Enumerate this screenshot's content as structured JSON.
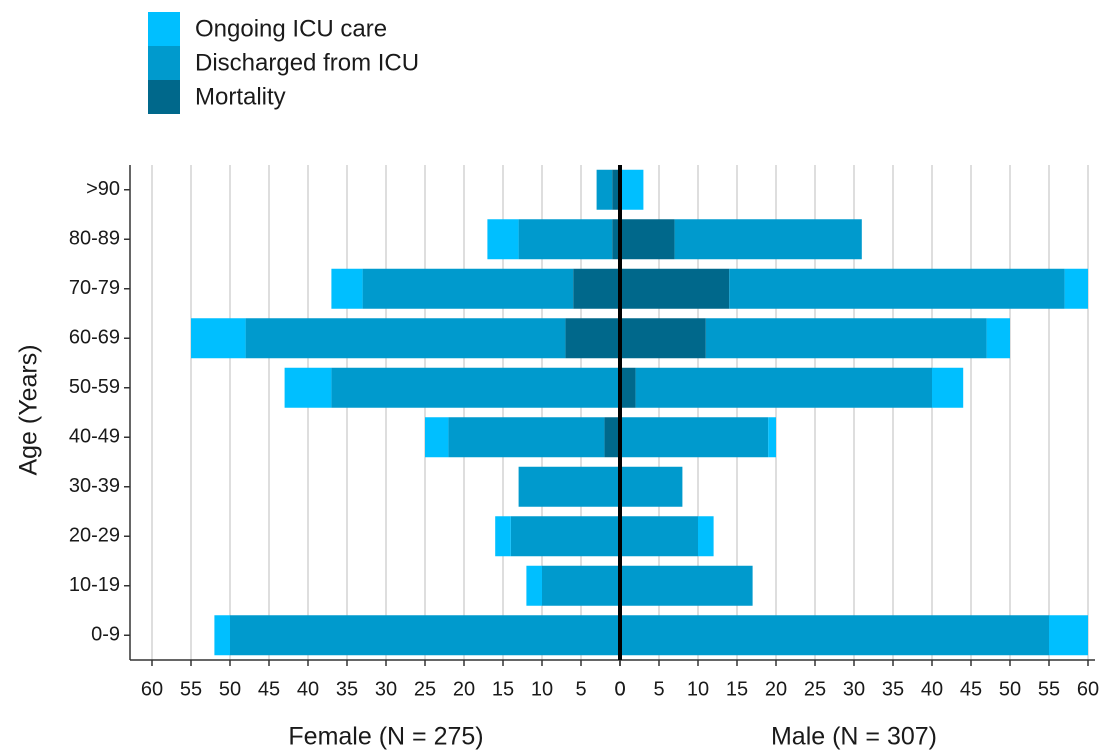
{
  "chart_data": {
    "type": "pyramid",
    "ylabel": "Age (Years)",
    "categories": [
      "0-9",
      "10-19",
      "20-29",
      "30-39",
      "40-49",
      "50-59",
      "60-69",
      "70-79",
      "80-89",
      ">90"
    ],
    "series": [
      {
        "name": "Ongoing ICU care",
        "color": "#00bfff"
      },
      {
        "name": "Discharged from ICU",
        "color": "#009acd"
      },
      {
        "name": "Mortality",
        "color": "#00688b"
      }
    ],
    "sides": [
      {
        "xlabel": "Female (N = 275)",
        "direction": "left",
        "values": [
          [
            2,
            2,
            2,
            0,
            3,
            6,
            7,
            4,
            4,
            0
          ],
          [
            50,
            10,
            14,
            13,
            20,
            37,
            41,
            27,
            12,
            2
          ],
          [
            0,
            0,
            0,
            0,
            2,
            0,
            7,
            6,
            1,
            1
          ]
        ]
      },
      {
        "xlabel": "Male (N = 307)",
        "direction": "right",
        "values": [
          [
            5,
            0,
            2,
            0,
            1,
            4,
            3,
            3,
            0,
            3
          ],
          [
            55,
            17,
            10,
            8,
            19,
            38,
            36,
            43,
            24,
            0
          ],
          [
            0,
            0,
            0,
            0,
            0,
            2,
            11,
            14,
            7,
            0
          ]
        ]
      }
    ],
    "xlim": [
      0,
      60
    ],
    "xticks": [
      0,
      5,
      10,
      15,
      20,
      25,
      30,
      35,
      40,
      45,
      50,
      55,
      60
    ],
    "grid": true
  }
}
